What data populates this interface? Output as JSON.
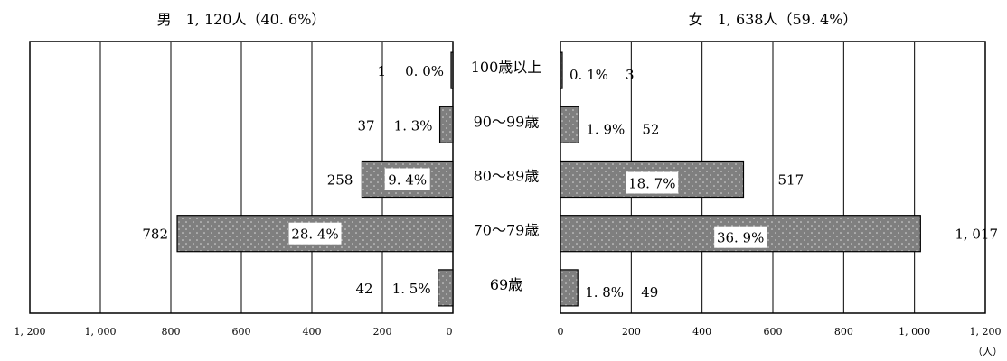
{
  "chart_data": {
    "type": "bar",
    "orientation": "horizontal",
    "layout": "population-pyramid",
    "categories": [
      "100歳以上",
      "90～99歳",
      "80～89歳",
      "70～79歳",
      "69歳"
    ],
    "xlim": [
      0,
      1200
    ],
    "xticks": [
      0,
      200,
      400,
      600,
      800,
      1000,
      1200
    ],
    "tick_labels_left": [
      "0",
      "200",
      "400",
      "600",
      "800",
      "1, 000",
      "1, 200"
    ],
    "tick_labels_right": [
      "0",
      "200",
      "400",
      "600",
      "800",
      "1, 000",
      "1, 200"
    ],
    "unit_label": "（人）",
    "grid": "vertical",
    "series": [
      {
        "side": "left",
        "title": "男　1, 120人（40. 6%）",
        "values": [
          1,
          37,
          258,
          782,
          42
        ],
        "value_labels": [
          "1",
          "37",
          "258",
          "782",
          "42"
        ],
        "percent_labels": [
          "0. 0%",
          "1. 3%",
          "9. 4%",
          "28. 4%",
          "1. 5%"
        ]
      },
      {
        "side": "right",
        "title": "女　1, 638人（59. 4%）",
        "values": [
          3,
          52,
          517,
          1017,
          49
        ],
        "value_labels": [
          "3",
          "52",
          "517",
          "1, 017",
          "49"
        ],
        "percent_labels": [
          "0. 1%",
          "1. 9%",
          "18. 7%",
          "36. 9%",
          "1. 8%"
        ]
      }
    ],
    "colors": {
      "bar_fill": "#7f7f7f",
      "dot": "#d9d9d9",
      "axis": "#000000",
      "grid": "#000000"
    }
  }
}
